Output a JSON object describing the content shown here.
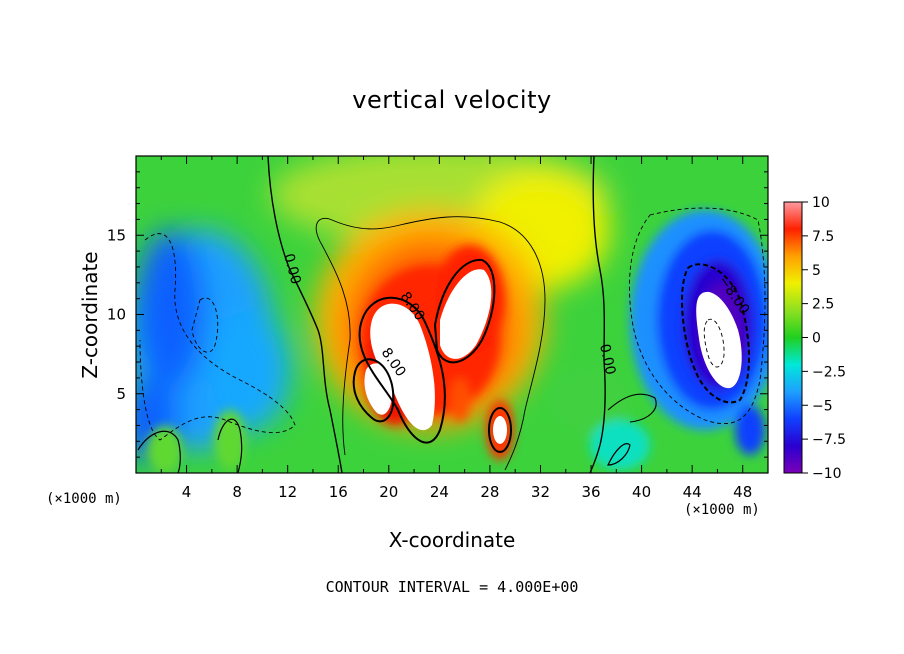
{
  "chart_data": {
    "type": "heatmap",
    "title": "vertical velocity",
    "xlabel": "X-coordinate",
    "ylabel": "Z-coordinate",
    "x_unit_label": "(×1000 m)",
    "xlim": [
      0,
      50
    ],
    "ylim": [
      0,
      20
    ],
    "x_ticks": [
      "4",
      "8",
      "12",
      "16",
      "20",
      "24",
      "28",
      "32",
      "36",
      "40",
      "44",
      "48"
    ],
    "y_ticks": [
      "5",
      "10",
      "15"
    ],
    "colorbar": {
      "range": [
        -10,
        10
      ],
      "ticks": [
        "10",
        "7.5",
        "5",
        "2.5",
        "0",
        "−2.5",
        "−5",
        "−7.5",
        "−10"
      ]
    },
    "contour_interval_text": "CONTOUR INTERVAL = 4.000E+00",
    "contour_labels": [
      "0.00",
      "0.00",
      "8.00",
      "8.00",
      "−8.00"
    ],
    "features": [
      {
        "kind": "updraft",
        "x": 24,
        "z": 10,
        "peak": 15
      },
      {
        "kind": "downdraft",
        "x": 45.5,
        "z": 9,
        "peak": -15
      },
      {
        "kind": "downdraft-region",
        "x": 6,
        "z": 9,
        "peak": -4
      }
    ]
  }
}
